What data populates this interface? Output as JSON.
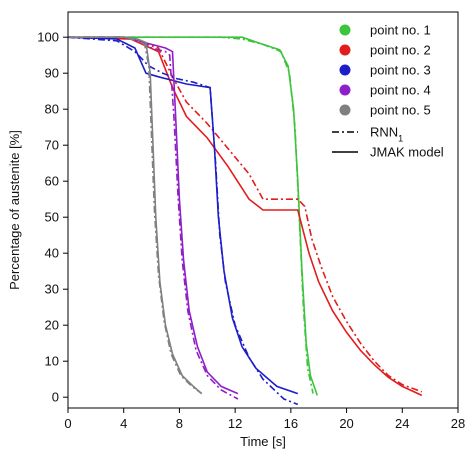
{
  "chart_data": {
    "type": "line",
    "title": "",
    "xlabel": "Time [s]",
    "ylabel": "Percentage of austenite [%]",
    "xlim": [
      0,
      28
    ],
    "ylim": [
      -3,
      107
    ],
    "xticks": [
      0,
      4,
      8,
      12,
      16,
      20,
      24,
      28
    ],
    "yticks": [
      0,
      10,
      20,
      30,
      40,
      50,
      60,
      70,
      80,
      90,
      100
    ],
    "grid": false,
    "legend_position": "top-right",
    "series": [
      {
        "name": "point no. 1",
        "color": "#3cc43c",
        "jmak": [
          [
            0,
            100
          ],
          [
            12.5,
            100
          ],
          [
            14,
            98
          ],
          [
            15.2,
            96.5
          ],
          [
            15.8,
            92
          ],
          [
            16.2,
            80
          ],
          [
            16.5,
            60
          ],
          [
            16.8,
            35
          ],
          [
            17.1,
            15
          ],
          [
            17.4,
            6
          ],
          [
            17.9,
            0.5
          ]
        ],
        "rnn": [
          [
            0,
            100
          ],
          [
            11,
            100
          ],
          [
            12.5,
            99.5
          ],
          [
            14,
            98
          ],
          [
            15.3,
            96
          ],
          [
            15.9,
            90
          ],
          [
            16.3,
            75
          ],
          [
            16.6,
            50
          ],
          [
            16.9,
            25
          ],
          [
            17.2,
            8
          ],
          [
            17.6,
            1
          ]
        ]
      },
      {
        "name": "point no. 2",
        "color": "#e21d1d",
        "jmak": [
          [
            0,
            100
          ],
          [
            4.5,
            99.5
          ],
          [
            6.5,
            96
          ],
          [
            7.5,
            86
          ],
          [
            8.5,
            78
          ],
          [
            10,
            72
          ],
          [
            11.5,
            64
          ],
          [
            13,
            55
          ],
          [
            14,
            52
          ],
          [
            16.5,
            52
          ],
          [
            17.3,
            40
          ],
          [
            18,
            32
          ],
          [
            19,
            24
          ],
          [
            20,
            18
          ],
          [
            21,
            13
          ],
          [
            22,
            9
          ],
          [
            23,
            5.5
          ],
          [
            24,
            3
          ],
          [
            25.4,
            0.5
          ]
        ],
        "rnn": [
          [
            0,
            100
          ],
          [
            4.5,
            99.5
          ],
          [
            6.5,
            97
          ],
          [
            7.5,
            89
          ],
          [
            8.5,
            82
          ],
          [
            10,
            76
          ],
          [
            11.5,
            69
          ],
          [
            13,
            62
          ],
          [
            14,
            55
          ],
          [
            16.5,
            55
          ],
          [
            17,
            53
          ],
          [
            17.5,
            44
          ],
          [
            18.2,
            36
          ],
          [
            19,
            28
          ],
          [
            20,
            21
          ],
          [
            21,
            15
          ],
          [
            22,
            10
          ],
          [
            23,
            6
          ],
          [
            24,
            3.5
          ],
          [
            25.4,
            1.5
          ]
        ]
      },
      {
        "name": "point no. 3",
        "color": "#1e1ec8",
        "jmak": [
          [
            0,
            100
          ],
          [
            3.5,
            99.5
          ],
          [
            4.8,
            97
          ],
          [
            5.6,
            90
          ],
          [
            6.5,
            89
          ],
          [
            7.5,
            88
          ],
          [
            8.5,
            87
          ],
          [
            10.2,
            86
          ],
          [
            10.5,
            70
          ],
          [
            10.8,
            50
          ],
          [
            11.2,
            35
          ],
          [
            11.8,
            22
          ],
          [
            12.5,
            14
          ],
          [
            13.5,
            8
          ],
          [
            15,
            3
          ],
          [
            16.5,
            1
          ]
        ],
        "rnn": [
          [
            0,
            100
          ],
          [
            3.5,
            99
          ],
          [
            4.8,
            96
          ],
          [
            5.8,
            92
          ],
          [
            6.8,
            90
          ],
          [
            7.8,
            88.5
          ],
          [
            9,
            87.5
          ],
          [
            10.2,
            86
          ],
          [
            10.6,
            65
          ],
          [
            10.9,
            45
          ],
          [
            11.3,
            32
          ],
          [
            12,
            20
          ],
          [
            13,
            11
          ],
          [
            14,
            5
          ],
          [
            15.5,
            -0.5
          ],
          [
            16.5,
            -2
          ]
        ]
      },
      {
        "name": "point no. 4",
        "color": "#8f1fc8",
        "jmak": [
          [
            0,
            100
          ],
          [
            4,
            100
          ],
          [
            5,
            99
          ],
          [
            6,
            98
          ],
          [
            7,
            97
          ],
          [
            7.5,
            96
          ],
          [
            7.7,
            80
          ],
          [
            8,
            55
          ],
          [
            8.3,
            38
          ],
          [
            8.7,
            24
          ],
          [
            9.3,
            14
          ],
          [
            10,
            7
          ],
          [
            11,
            3
          ],
          [
            12.2,
            1
          ]
        ],
        "rnn": [
          [
            0,
            100
          ],
          [
            4,
            100
          ],
          [
            5,
            99.5
          ],
          [
            6,
            97
          ],
          [
            7,
            96
          ],
          [
            7.3,
            95
          ],
          [
            7.6,
            78
          ],
          [
            7.9,
            56
          ],
          [
            8.2,
            38
          ],
          [
            8.6,
            24
          ],
          [
            9.2,
            13
          ],
          [
            10,
            6
          ],
          [
            11,
            2
          ],
          [
            12.2,
            -0.5
          ]
        ]
      },
      {
        "name": "point no. 5",
        "color": "#808080",
        "jmak": [
          [
            0,
            100
          ],
          [
            4,
            100
          ],
          [
            5,
            99.5
          ],
          [
            5.6,
            98.5
          ],
          [
            5.9,
            90
          ],
          [
            6.1,
            70
          ],
          [
            6.3,
            50
          ],
          [
            6.6,
            32
          ],
          [
            7,
            20
          ],
          [
            7.5,
            12
          ],
          [
            8.2,
            6
          ],
          [
            9,
            3
          ],
          [
            9.6,
            1
          ]
        ],
        "rnn": [
          [
            0,
            100
          ],
          [
            4,
            100
          ],
          [
            5,
            99
          ],
          [
            5.5,
            98
          ],
          [
            5.8,
            92
          ],
          [
            6,
            72
          ],
          [
            6.2,
            52
          ],
          [
            6.5,
            34
          ],
          [
            6.9,
            21
          ],
          [
            7.4,
            12
          ],
          [
            8.1,
            6
          ],
          [
            8.9,
            3
          ],
          [
            9.6,
            1
          ]
        ]
      }
    ],
    "line_styles": [
      {
        "label": "RNN",
        "subscript": "1",
        "style": "dash-dot"
      },
      {
        "label": "JMAK model",
        "style": "solid"
      }
    ]
  }
}
